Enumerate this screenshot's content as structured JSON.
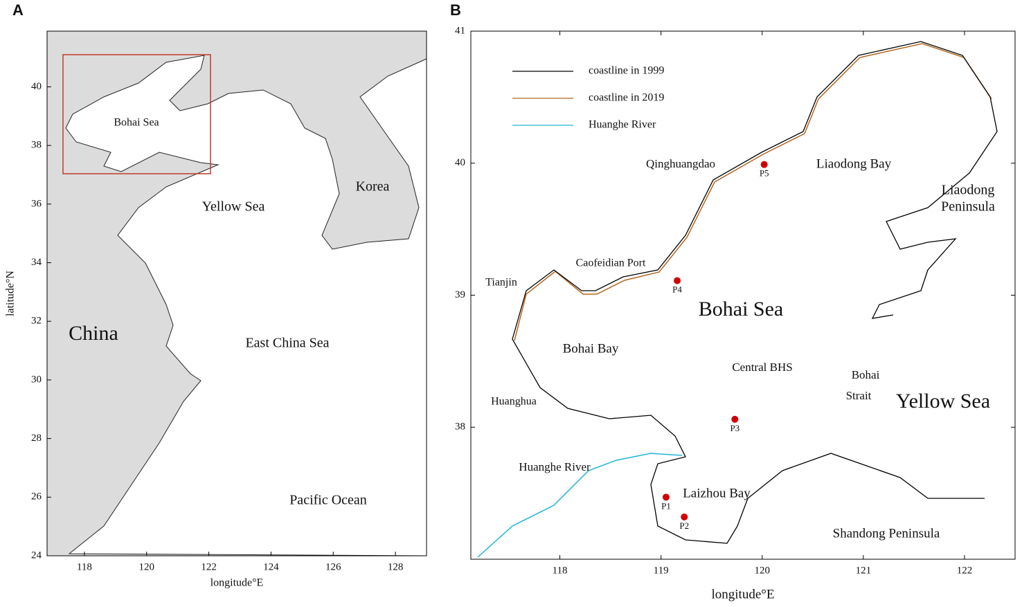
{
  "panels": [
    {
      "label": "A",
      "xlabel": "longitude°E",
      "ylabel": "latitude°N",
      "xlim": [
        116.8,
        129.0
      ],
      "ylim": [
        24,
        41.9
      ],
      "xticks": [
        118,
        120,
        122,
        124,
        126,
        128
      ],
      "yticks": [
        24,
        26,
        28,
        30,
        32,
        34,
        36,
        38,
        40
      ],
      "place_labels": [
        "China",
        "Bohai Sea",
        "Yellow Sea",
        "Korea",
        "East China Sea",
        "Pacific Ocean"
      ]
    },
    {
      "label": "B",
      "xlabel": "longitude°E",
      "xlim": [
        117.12,
        122.5
      ],
      "ylim": [
        37.0,
        41
      ],
      "xticks": [
        118,
        119,
        120,
        121,
        122
      ],
      "yticks": [
        38,
        39,
        40,
        41
      ],
      "legend": [
        {
          "name": "coastline in 1999",
          "color": "#000000"
        },
        {
          "name": "coastline in 2019",
          "color": "#b5651d"
        },
        {
          "name": "Huanghe River",
          "color": "#1fb5d6"
        }
      ],
      "place_labels": [
        "Qinghuangdao",
        "Liaodong Bay",
        "Liaodong",
        "Peninsula",
        "Caofeidian Port",
        "Tianjin",
        "Bohai Sea",
        "Bohai Bay",
        "Central  BHS",
        "Bohai",
        "Strait",
        "Yellow Sea",
        "Huanghua",
        "Huanghe River",
        "Laizhou Bay",
        "Shandong Peninsula"
      ],
      "points": [
        {
          "label": "P1",
          "lon": 119.05,
          "lat": 37.47
        },
        {
          "label": "P2",
          "lon": 119.23,
          "lat": 37.32
        },
        {
          "label": "P3",
          "lon": 119.73,
          "lat": 38.06
        },
        {
          "label": "P4",
          "lon": 119.16,
          "lat": 39.11
        },
        {
          "label": "P5",
          "lon": 120.02,
          "lat": 39.99
        }
      ]
    }
  ]
}
